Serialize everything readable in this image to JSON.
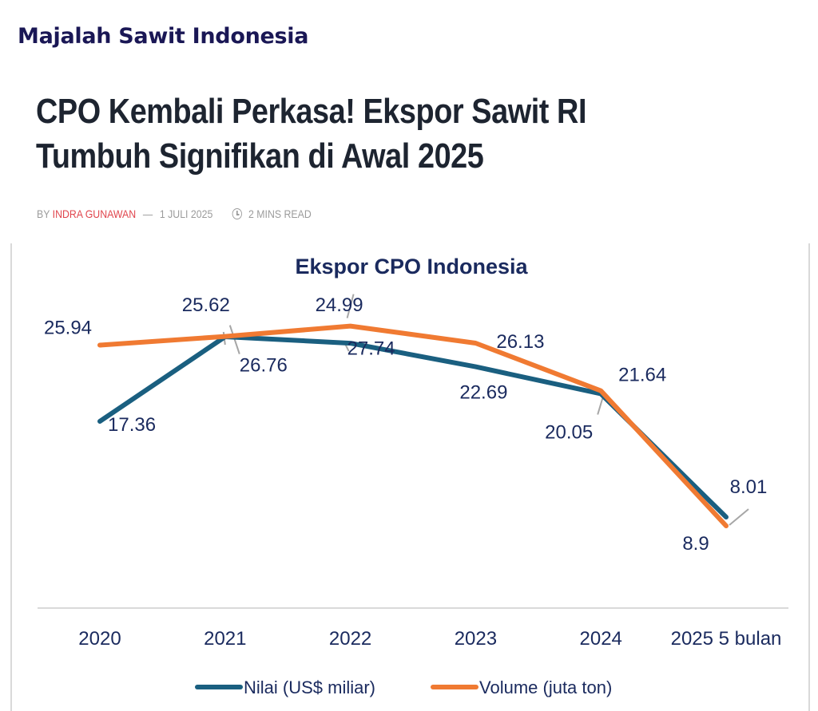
{
  "site": {
    "brand": "Majalah Sawit Indonesia"
  },
  "article": {
    "title": "CPO Kembali Perkasa! Ekspor Sawit RI Tumbuh Signifikan di Awal 2025",
    "by": "BY",
    "author": "INDRA GUNAWAN",
    "date": "1 JULI 2025",
    "read_time": "2 MINS READ",
    "dash": "—"
  },
  "colors": {
    "brand": "#1a1755",
    "author": "#e0454d",
    "nilai": "#1a5f80",
    "volume": "#f07a32",
    "label": "#1a2a5e",
    "leader": "#a6a6a6",
    "axis": "#d9d9d9"
  },
  "chart_data": {
    "type": "line",
    "title": "Ekspor CPO Indonesia",
    "categories": [
      "2020",
      "2021",
      "2022",
      "2023",
      "2024",
      "2025 5 bulan"
    ],
    "series": [
      {
        "name": "Nilai (US$ miliar)",
        "values": [
          17.36,
          25.62,
          24.99,
          22.69,
          20.05,
          8.01
        ],
        "color": "#1a5f80"
      },
      {
        "name": "Volume (juta ton)",
        "values": [
          25.94,
          26.76,
          27.74,
          26.13,
          21.64,
          8.9
        ],
        "color": "#f07a32"
      }
    ],
    "xlabel": "",
    "ylabel": "",
    "grid": false,
    "legend": "bottom",
    "data_labels": true
  }
}
